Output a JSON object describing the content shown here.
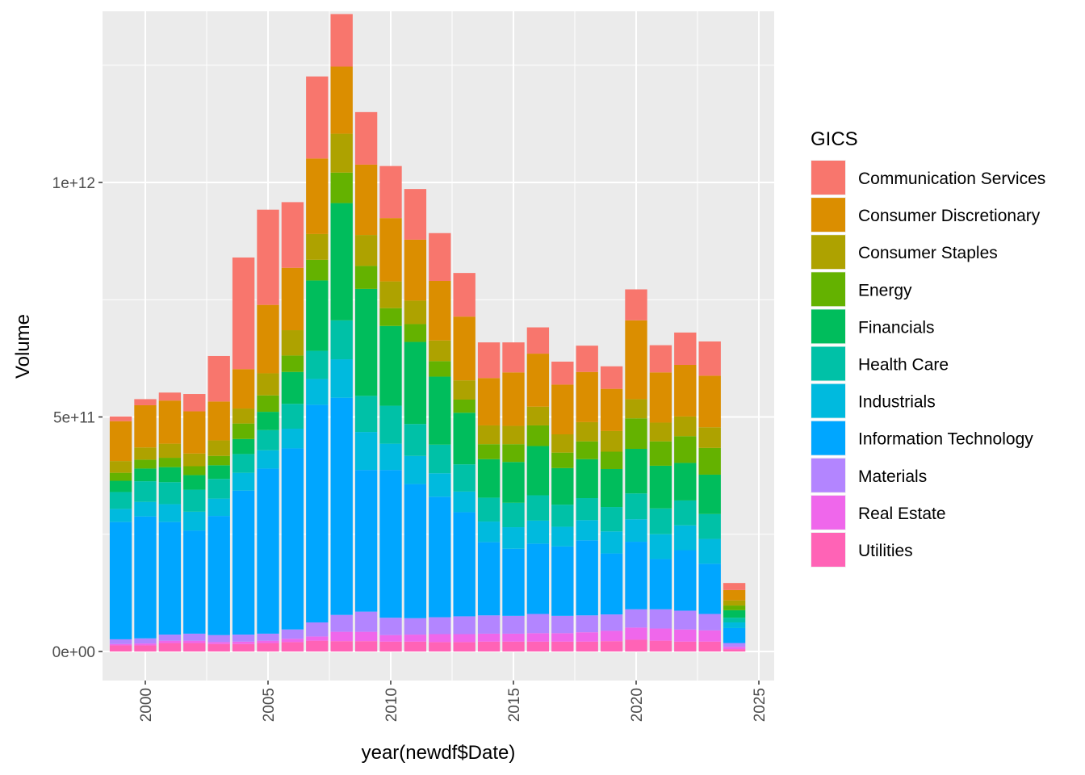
{
  "chart_data": {
    "type": "bar",
    "stacked": true,
    "title": "",
    "xlabel": "year(newdf$Date)",
    "ylabel": "Volume",
    "legend_title": "GICS",
    "legend_position": "right",
    "grid": true,
    "xlim": [
      1999.3,
      2025.7
    ],
    "ylim": [
      -65000000000.0,
      1350000000000.0
    ],
    "x_ticks": [
      2000,
      2005,
      2010,
      2015,
      2020,
      2025
    ],
    "x_tick_labels": [
      "2000",
      "2005",
      "2010",
      "2015",
      "2020",
      "2025"
    ],
    "y_ticks": [
      0,
      500000000000,
      1000000000000
    ],
    "y_tick_labels": [
      "0e+00",
      "5e+11",
      "1e+12"
    ],
    "categories": [
      1999,
      2000,
      2001,
      2002,
      2003,
      2004,
      2005,
      2006,
      2007,
      2008,
      2009,
      2010,
      2011,
      2012,
      2013,
      2014,
      2015,
      2016,
      2017,
      2018,
      2019,
      2020,
      2021,
      2022,
      2023,
      2024
    ],
    "series": [
      {
        "name": "Communication Services",
        "color": "#F8766D",
        "values": [
          10000000000.0,
          13000000000.0,
          17000000000.0,
          37000000000.0,
          97000000000.0,
          238000000000.0,
          203000000000.0,
          140000000000.0,
          175000000000.0,
          112000000000.0,
          112000000000.0,
          111000000000.0,
          108000000000.0,
          102000000000.0,
          93000000000.0,
          76000000000.0,
          64000000000.0,
          56000000000.0,
          49000000000.0,
          56000000000.0,
          48000000000.0,
          66000000000.0,
          58000000000.0,
          69000000000.0,
          73000000000.0,
          15000000000.0
        ]
      },
      {
        "name": "Consumer Discretionary",
        "color": "#DB8E00",
        "values": [
          85000000000.0,
          90000000000.0,
          92000000000.0,
          90000000000.0,
          83000000000.0,
          84000000000.0,
          146000000000.0,
          133000000000.0,
          161000000000.0,
          143000000000.0,
          150000000000.0,
          135000000000.0,
          130000000000.0,
          127000000000.0,
          136000000000.0,
          101000000000.0,
          114000000000.0,
          113000000000.0,
          106000000000.0,
          107000000000.0,
          90000000000.0,
          168000000000.0,
          107000000000.0,
          110000000000.0,
          110000000000.0,
          22000000000.0
        ]
      },
      {
        "name": "Consumer Staples",
        "color": "#AEA200",
        "values": [
          25000000000.0,
          26000000000.0,
          30000000000.0,
          27000000000.0,
          33000000000.0,
          32000000000.0,
          47000000000.0,
          54000000000.0,
          55000000000.0,
          83000000000.0,
          66000000000.0,
          57000000000.0,
          50000000000.0,
          44000000000.0,
          41000000000.0,
          40000000000.0,
          39000000000.0,
          40000000000.0,
          39000000000.0,
          41000000000.0,
          44000000000.0,
          41000000000.0,
          40000000000.0,
          42000000000.0,
          44000000000.0,
          11000000000.0
        ]
      },
      {
        "name": "Energy",
        "color": "#64B200",
        "values": [
          17000000000.0,
          19000000000.0,
          20000000000.0,
          19000000000.0,
          20000000000.0,
          33000000000.0,
          35000000000.0,
          35000000000.0,
          44000000000.0,
          65000000000.0,
          49000000000.0,
          38000000000.0,
          38000000000.0,
          33000000000.0,
          28000000000.0,
          32000000000.0,
          38000000000.0,
          44000000000.0,
          33000000000.0,
          38000000000.0,
          37000000000.0,
          65000000000.0,
          52000000000.0,
          57000000000.0,
          57000000000.0,
          10000000000.0
        ]
      },
      {
        "name": "Financials",
        "color": "#00BD5C",
        "values": [
          24000000000.0,
          27000000000.0,
          32000000000.0,
          31000000000.0,
          29000000000.0,
          32000000000.0,
          39000000000.0,
          68000000000.0,
          150000000000.0,
          250000000000.0,
          228000000000.0,
          170000000000.0,
          175000000000.0,
          145000000000.0,
          110000000000.0,
          82000000000.0,
          87000000000.0,
          105000000000.0,
          78000000000.0,
          83000000000.0,
          81000000000.0,
          95000000000.0,
          91000000000.0,
          80000000000.0,
          84000000000.0,
          16000000000.0
        ]
      },
      {
        "name": "Health Care",
        "color": "#00C1A7",
        "values": [
          36000000000.0,
          44000000000.0,
          47000000000.0,
          47000000000.0,
          42000000000.0,
          40000000000.0,
          43000000000.0,
          53000000000.0,
          60000000000.0,
          83000000000.0,
          77000000000.0,
          81000000000.0,
          68000000000.0,
          61000000000.0,
          58000000000.0,
          51000000000.0,
          52000000000.0,
          54000000000.0,
          47000000000.0,
          47000000000.0,
          52000000000.0,
          55000000000.0,
          55000000000.0,
          53000000000.0,
          53000000000.0,
          10000000000.0
        ]
      },
      {
        "name": "Industrials",
        "color": "#00BADE",
        "values": [
          28000000000.0,
          31000000000.0,
          38000000000.0,
          40000000000.0,
          37000000000.0,
          38000000000.0,
          39000000000.0,
          42000000000.0,
          55000000000.0,
          82000000000.0,
          81000000000.0,
          56000000000.0,
          60000000000.0,
          50000000000.0,
          44000000000.0,
          44000000000.0,
          46000000000.0,
          49000000000.0,
          42000000000.0,
          43000000000.0,
          47000000000.0,
          48000000000.0,
          53000000000.0,
          53000000000.0,
          53000000000.0,
          12000000000.0
        ]
      },
      {
        "name": "Information Technology",
        "color": "#00A6FF",
        "values": [
          250000000000.0,
          260000000000.0,
          240000000000.0,
          220000000000.0,
          254000000000.0,
          307000000000.0,
          352000000000.0,
          386000000000.0,
          464000000000.0,
          463000000000.0,
          302000000000.0,
          315000000000.0,
          286000000000.0,
          257000000000.0,
          222000000000.0,
          156000000000.0,
          143000000000.0,
          150000000000.0,
          148000000000.0,
          160000000000.0,
          130000000000.0,
          144000000000.0,
          107000000000.0,
          129000000000.0,
          107000000000.0,
          32000000000.0
        ]
      },
      {
        "name": "Materials",
        "color": "#B385FF",
        "values": [
          10000000000.0,
          11000000000.0,
          13000000000.0,
          15000000000.0,
          15000000000.0,
          15000000000.0,
          15000000000.0,
          20000000000.0,
          30000000000.0,
          36000000000.0,
          43000000000.0,
          37000000000.0,
          35000000000.0,
          36000000000.0,
          38000000000.0,
          39000000000.0,
          38000000000.0,
          41000000000.0,
          37000000000.0,
          36000000000.0,
          35000000000.0,
          39000000000.0,
          41000000000.0,
          40000000000.0,
          35000000000.0,
          8000000000.0
        ]
      },
      {
        "name": "Real Estate",
        "color": "#EF67EB",
        "values": [
          3000000000.0,
          4000000000.0,
          5000000000.0,
          5000000000.0,
          4000000000.0,
          5000000000.0,
          5000000000.0,
          7000000000.0,
          9000000000.0,
          20000000000.0,
          20000000000.0,
          14000000000.0,
          15000000000.0,
          17000000000.0,
          17000000000.0,
          17000000000.0,
          17000000000.0,
          18000000000.0,
          18000000000.0,
          20000000000.0,
          22000000000.0,
          26000000000.0,
          26000000000.0,
          26000000000.0,
          24000000000.0,
          5000000000.0
        ]
      },
      {
        "name": "Utilities",
        "color": "#FF63B6",
        "values": [
          13000000000.0,
          13000000000.0,
          18000000000.0,
          18000000000.0,
          16000000000.0,
          16000000000.0,
          18000000000.0,
          20000000000.0,
          23000000000.0,
          22000000000.0,
          22000000000.0,
          21000000000.0,
          21000000000.0,
          20000000000.0,
          20000000000.0,
          21000000000.0,
          21000000000.0,
          21000000000.0,
          21000000000.0,
          21000000000.0,
          22000000000.0,
          25000000000.0,
          23000000000.0,
          21000000000.0,
          21000000000.0,
          5000000000.0
        ]
      }
    ]
  }
}
